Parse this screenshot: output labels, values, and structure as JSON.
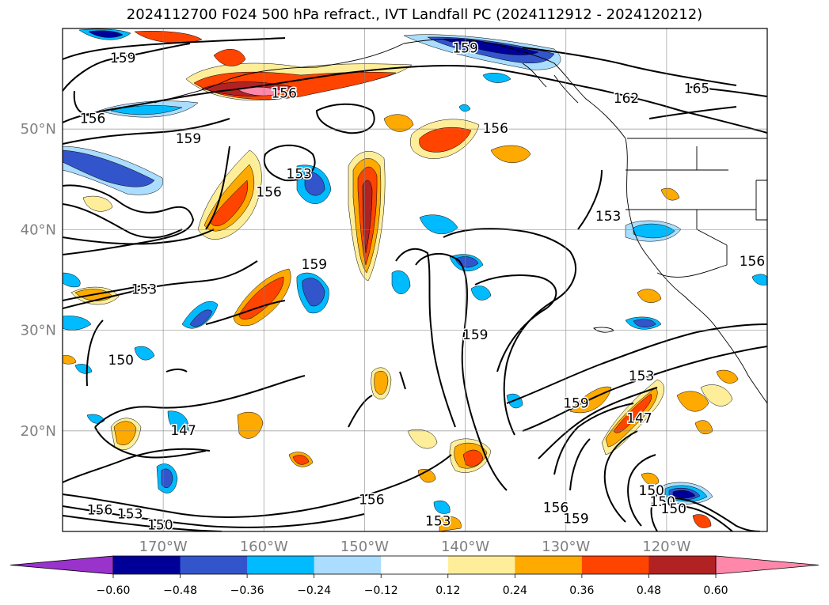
{
  "title": "2024112700 F024 500 hPa refract., IVT Landfall PC (2024112912 - 2024120212)",
  "chart_data": {
    "type": "heatmap",
    "title": "2024112700 F024 500 hPa refract., IVT Landfall PC (2024112912 - 2024120212)",
    "xlabel": "",
    "ylabel": "",
    "xlim": [
      -180,
      -110
    ],
    "ylim": [
      10,
      60
    ],
    "x_ticks": [
      {
        "value": -170,
        "label": "170°W"
      },
      {
        "value": -160,
        "label": "160°W"
      },
      {
        "value": -150,
        "label": "150°W"
      },
      {
        "value": -140,
        "label": "140°W"
      },
      {
        "value": -130,
        "label": "130°W"
      },
      {
        "value": -120,
        "label": "120°W"
      }
    ],
    "y_ticks": [
      {
        "value": 20,
        "label": "20°N"
      },
      {
        "value": 30,
        "label": "30°N"
      },
      {
        "value": 40,
        "label": "40°N"
      },
      {
        "value": 50,
        "label": "50°N"
      }
    ],
    "grid": true,
    "colorbar": {
      "orientation": "horizontal",
      "extend": "both",
      "ticks": [
        "−0.60",
        "−0.48",
        "−0.36",
        "−0.24",
        "−0.12",
        "0.12",
        "0.24",
        "0.36",
        "0.48",
        "0.60"
      ],
      "boundaries": [
        -0.6,
        -0.48,
        -0.36,
        -0.24,
        -0.12,
        0.12,
        0.24,
        0.36,
        0.48,
        0.6
      ],
      "colors": [
        "#9933cc",
        "#000099",
        "#3355cc",
        "#00bbff",
        "#aaddff",
        "#ffffff",
        "#ffee99",
        "#ffaa00",
        "#ff4400",
        "#b22222",
        "#ff88aa"
      ]
    },
    "contour_labels": [
      {
        "text": "159",
        "lon": -174,
        "lat": 57
      },
      {
        "text": "156",
        "lon": -177,
        "lat": 51
      },
      {
        "text": "156",
        "lon": -158,
        "lat": 53.5
      },
      {
        "text": "159",
        "lon": -167.5,
        "lat": 49
      },
      {
        "text": "153",
        "lon": -156.5,
        "lat": 45.5
      },
      {
        "text": "156",
        "lon": -159.5,
        "lat": 43.7
      },
      {
        "text": "159",
        "lon": -140,
        "lat": 58
      },
      {
        "text": "156",
        "lon": -137,
        "lat": 50
      },
      {
        "text": "162",
        "lon": -124,
        "lat": 53
      },
      {
        "text": "165",
        "lon": -117,
        "lat": 54
      },
      {
        "text": "153",
        "lon": -125.8,
        "lat": 41.3
      },
      {
        "text": "156",
        "lon": -111.5,
        "lat": 36.8
      },
      {
        "text": "159",
        "lon": -155,
        "lat": 36.5
      },
      {
        "text": "153",
        "lon": -171.9,
        "lat": 34
      },
      {
        "text": "150",
        "lon": -174.2,
        "lat": 27
      },
      {
        "text": "159",
        "lon": -139,
        "lat": 29.5
      },
      {
        "text": "159",
        "lon": -129,
        "lat": 22.7
      },
      {
        "text": "153",
        "lon": -122.5,
        "lat": 25.4
      },
      {
        "text": "147",
        "lon": -168,
        "lat": 20
      },
      {
        "text": "147",
        "lon": -122.7,
        "lat": 21.2
      },
      {
        "text": "156",
        "lon": -149.3,
        "lat": 13.1
      },
      {
        "text": "153",
        "lon": -142.7,
        "lat": 11
      },
      {
        "text": "150",
        "lon": -170.3,
        "lat": 10.6
      },
      {
        "text": "156",
        "lon": -131,
        "lat": 12.3
      },
      {
        "text": "159",
        "lon": -129,
        "lat": 11.2
      },
      {
        "text": "150",
        "lon": -121.5,
        "lat": 14
      },
      {
        "text": "150",
        "lon": -120.4,
        "lat": 12.9
      },
      {
        "text": "150",
        "lon": -119.3,
        "lat": 12.2
      },
      {
        "text": "156",
        "lon": -176.3,
        "lat": 12.1
      },
      {
        "text": "153",
        "lon": -173.3,
        "lat": 11.7
      }
    ]
  }
}
